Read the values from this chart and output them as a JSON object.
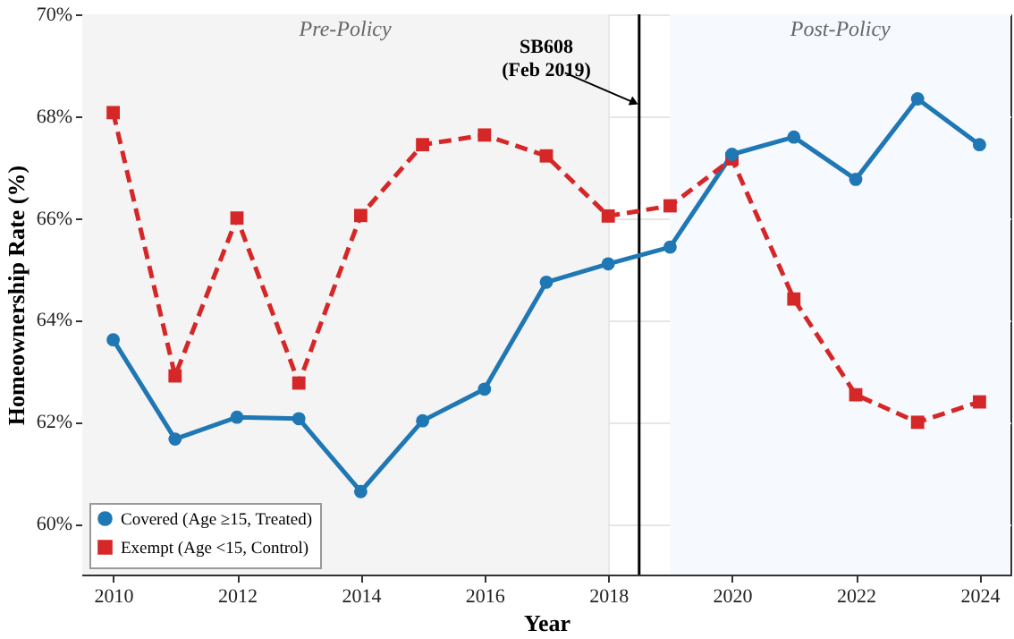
{
  "chart_data": {
    "type": "line",
    "xlabel": "Year",
    "ylabel": "Homeownership Rate (%)",
    "x": [
      2010,
      2011,
      2012,
      2013,
      2014,
      2015,
      2016,
      2017,
      2018,
      2019,
      2020,
      2021,
      2022,
      2023,
      2024
    ],
    "series": [
      {
        "name": "Covered (Age ≥15, Treated)",
        "color": "#1f77b4",
        "marker": "circle",
        "line_style": "solid",
        "values": [
          63.61,
          61.66,
          62.09,
          62.06,
          60.63,
          62.02,
          62.64,
          64.74,
          65.1,
          65.43,
          67.25,
          67.59,
          66.76,
          68.34,
          67.44
        ]
      },
      {
        "name": "Exempt (Age <15, Control)",
        "color": "#d62728",
        "marker": "square",
        "line_style": "dashed",
        "values": [
          68.07,
          62.9,
          66.0,
          62.76,
          66.05,
          67.44,
          67.63,
          67.22,
          66.04,
          66.24,
          67.16,
          64.41,
          62.53,
          61.99,
          62.39
        ]
      }
    ],
    "xlim": [
      2009.5,
      2024.5
    ],
    "xticks": [
      2010,
      2012,
      2014,
      2016,
      2018,
      2020,
      2022,
      2024
    ],
    "ylim": [
      59,
      70
    ],
    "yticks": [
      {
        "value": 60,
        "label": "60%"
      },
      {
        "value": 62,
        "label": "62%"
      },
      {
        "value": 64,
        "label": "64%"
      },
      {
        "value": 66,
        "label": "66%"
      },
      {
        "value": 68,
        "label": "68%"
      },
      {
        "value": 70,
        "label": "70%"
      }
    ],
    "ref_lines": [
      {
        "axis": "x",
        "value": 2018.5,
        "color": "#000000"
      }
    ],
    "bands": [
      {
        "axis": "x",
        "from": 2009.5,
        "to": 2018,
        "label": "Pre-Policy",
        "color": "#f4f4f4"
      },
      {
        "axis": "x",
        "from": 2019,
        "to": 2024.5,
        "label": "Post-Policy",
        "color": "#f6f9fd"
      }
    ],
    "annotations": [
      {
        "text": "SB608\n(Feb 2019)",
        "x": 2018.5,
        "y": 68.25
      }
    ],
    "grid": true,
    "legend": "bottom left"
  }
}
